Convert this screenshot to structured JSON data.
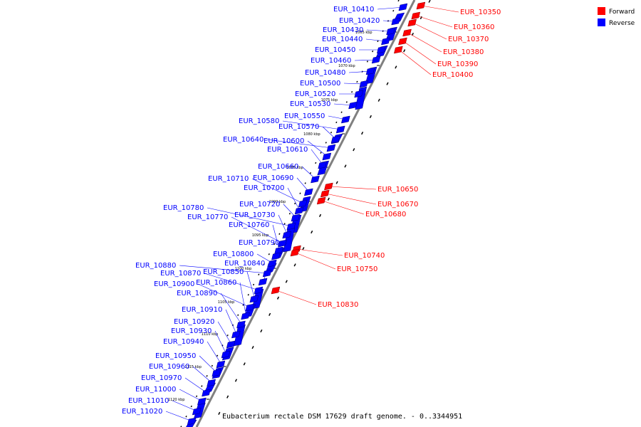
{
  "caption": "Eubacterium rectale DSM 17629 draft genome. - 0..3344951",
  "legend": [
    {
      "label": "Forward",
      "color": "#ff0000"
    },
    {
      "label": "Reverse",
      "color": "#0000ff"
    }
  ],
  "colors": {
    "forward": "#ff0000",
    "reverse": "#0000ff",
    "backbone": "#808080"
  },
  "ticks": [
    "1065 kbp",
    "1070 kbp",
    "1075 kbp",
    "1080 kbp",
    "1085 kbp",
    "1090 kbp",
    "1095 kbp",
    "1100 kbp",
    "1105 kbp",
    "1110 kbp",
    "1115 kbp",
    "1120 kbp"
  ],
  "genes": [
    {
      "id": "EUR_10350",
      "strand": "forward"
    },
    {
      "id": "EUR_10360",
      "strand": "forward"
    },
    {
      "id": "EUR_10370",
      "strand": "forward"
    },
    {
      "id": "EUR_10380",
      "strand": "forward"
    },
    {
      "id": "EUR_10390",
      "strand": "forward"
    },
    {
      "id": "EUR_10400",
      "strand": "forward"
    },
    {
      "id": "EUR_10410",
      "strand": "reverse"
    },
    {
      "id": "EUR_10420",
      "strand": "reverse"
    },
    {
      "id": "EUR_10430",
      "strand": "reverse"
    },
    {
      "id": "EUR_10440",
      "strand": "reverse"
    },
    {
      "id": "EUR_10450",
      "strand": "reverse"
    },
    {
      "id": "EUR_10460",
      "strand": "reverse"
    },
    {
      "id": "EUR_10480",
      "strand": "reverse"
    },
    {
      "id": "EUR_10500",
      "strand": "reverse"
    },
    {
      "id": "EUR_10520",
      "strand": "reverse"
    },
    {
      "id": "EUR_10530",
      "strand": "reverse"
    },
    {
      "id": "EUR_10550",
      "strand": "reverse"
    },
    {
      "id": "EUR_10580",
      "strand": "reverse"
    },
    {
      "id": "EUR_10570",
      "strand": "reverse"
    },
    {
      "id": "EUR_10640",
      "strand": "reverse"
    },
    {
      "id": "EUR_10600",
      "strand": "reverse"
    },
    {
      "id": "EUR_10610",
      "strand": "reverse"
    },
    {
      "id": "EUR_10660",
      "strand": "reverse"
    },
    {
      "id": "EUR_10650",
      "strand": "forward"
    },
    {
      "id": "EUR_10670",
      "strand": "forward"
    },
    {
      "id": "EUR_10680",
      "strand": "forward"
    },
    {
      "id": "EUR_10690",
      "strand": "reverse"
    },
    {
      "id": "EUR_10710",
      "strand": "reverse"
    },
    {
      "id": "EUR_10700",
      "strand": "reverse"
    },
    {
      "id": "EUR_10720",
      "strand": "reverse"
    },
    {
      "id": "EUR_10780",
      "strand": "reverse"
    },
    {
      "id": "EUR_10730",
      "strand": "reverse"
    },
    {
      "id": "EUR_10770",
      "strand": "reverse"
    },
    {
      "id": "EUR_10760",
      "strand": "reverse"
    },
    {
      "id": "EUR_10790",
      "strand": "reverse"
    },
    {
      "id": "EUR_10740",
      "strand": "forward"
    },
    {
      "id": "EUR_10800",
      "strand": "reverse"
    },
    {
      "id": "EUR_10750",
      "strand": "forward"
    },
    {
      "id": "EUR_10880",
      "strand": "reverse"
    },
    {
      "id": "EUR_10840",
      "strand": "reverse"
    },
    {
      "id": "EUR_10870",
      "strand": "reverse"
    },
    {
      "id": "EUR_10850",
      "strand": "reverse"
    },
    {
      "id": "EUR_10900",
      "strand": "reverse"
    },
    {
      "id": "EUR_10860",
      "strand": "reverse"
    },
    {
      "id": "EUR_10890",
      "strand": "reverse"
    },
    {
      "id": "EUR_10830",
      "strand": "forward"
    },
    {
      "id": "EUR_10910",
      "strand": "reverse"
    },
    {
      "id": "EUR_10920",
      "strand": "reverse"
    },
    {
      "id": "EUR_10930",
      "strand": "reverse"
    },
    {
      "id": "EUR_10940",
      "strand": "reverse"
    },
    {
      "id": "EUR_10950",
      "strand": "reverse"
    },
    {
      "id": "EUR_10960",
      "strand": "reverse"
    },
    {
      "id": "EUR_10970",
      "strand": "reverse"
    },
    {
      "id": "EUR_11000",
      "strand": "reverse"
    },
    {
      "id": "EUR_11010",
      "strand": "reverse"
    },
    {
      "id": "EUR_11020",
      "strand": "reverse"
    }
  ]
}
